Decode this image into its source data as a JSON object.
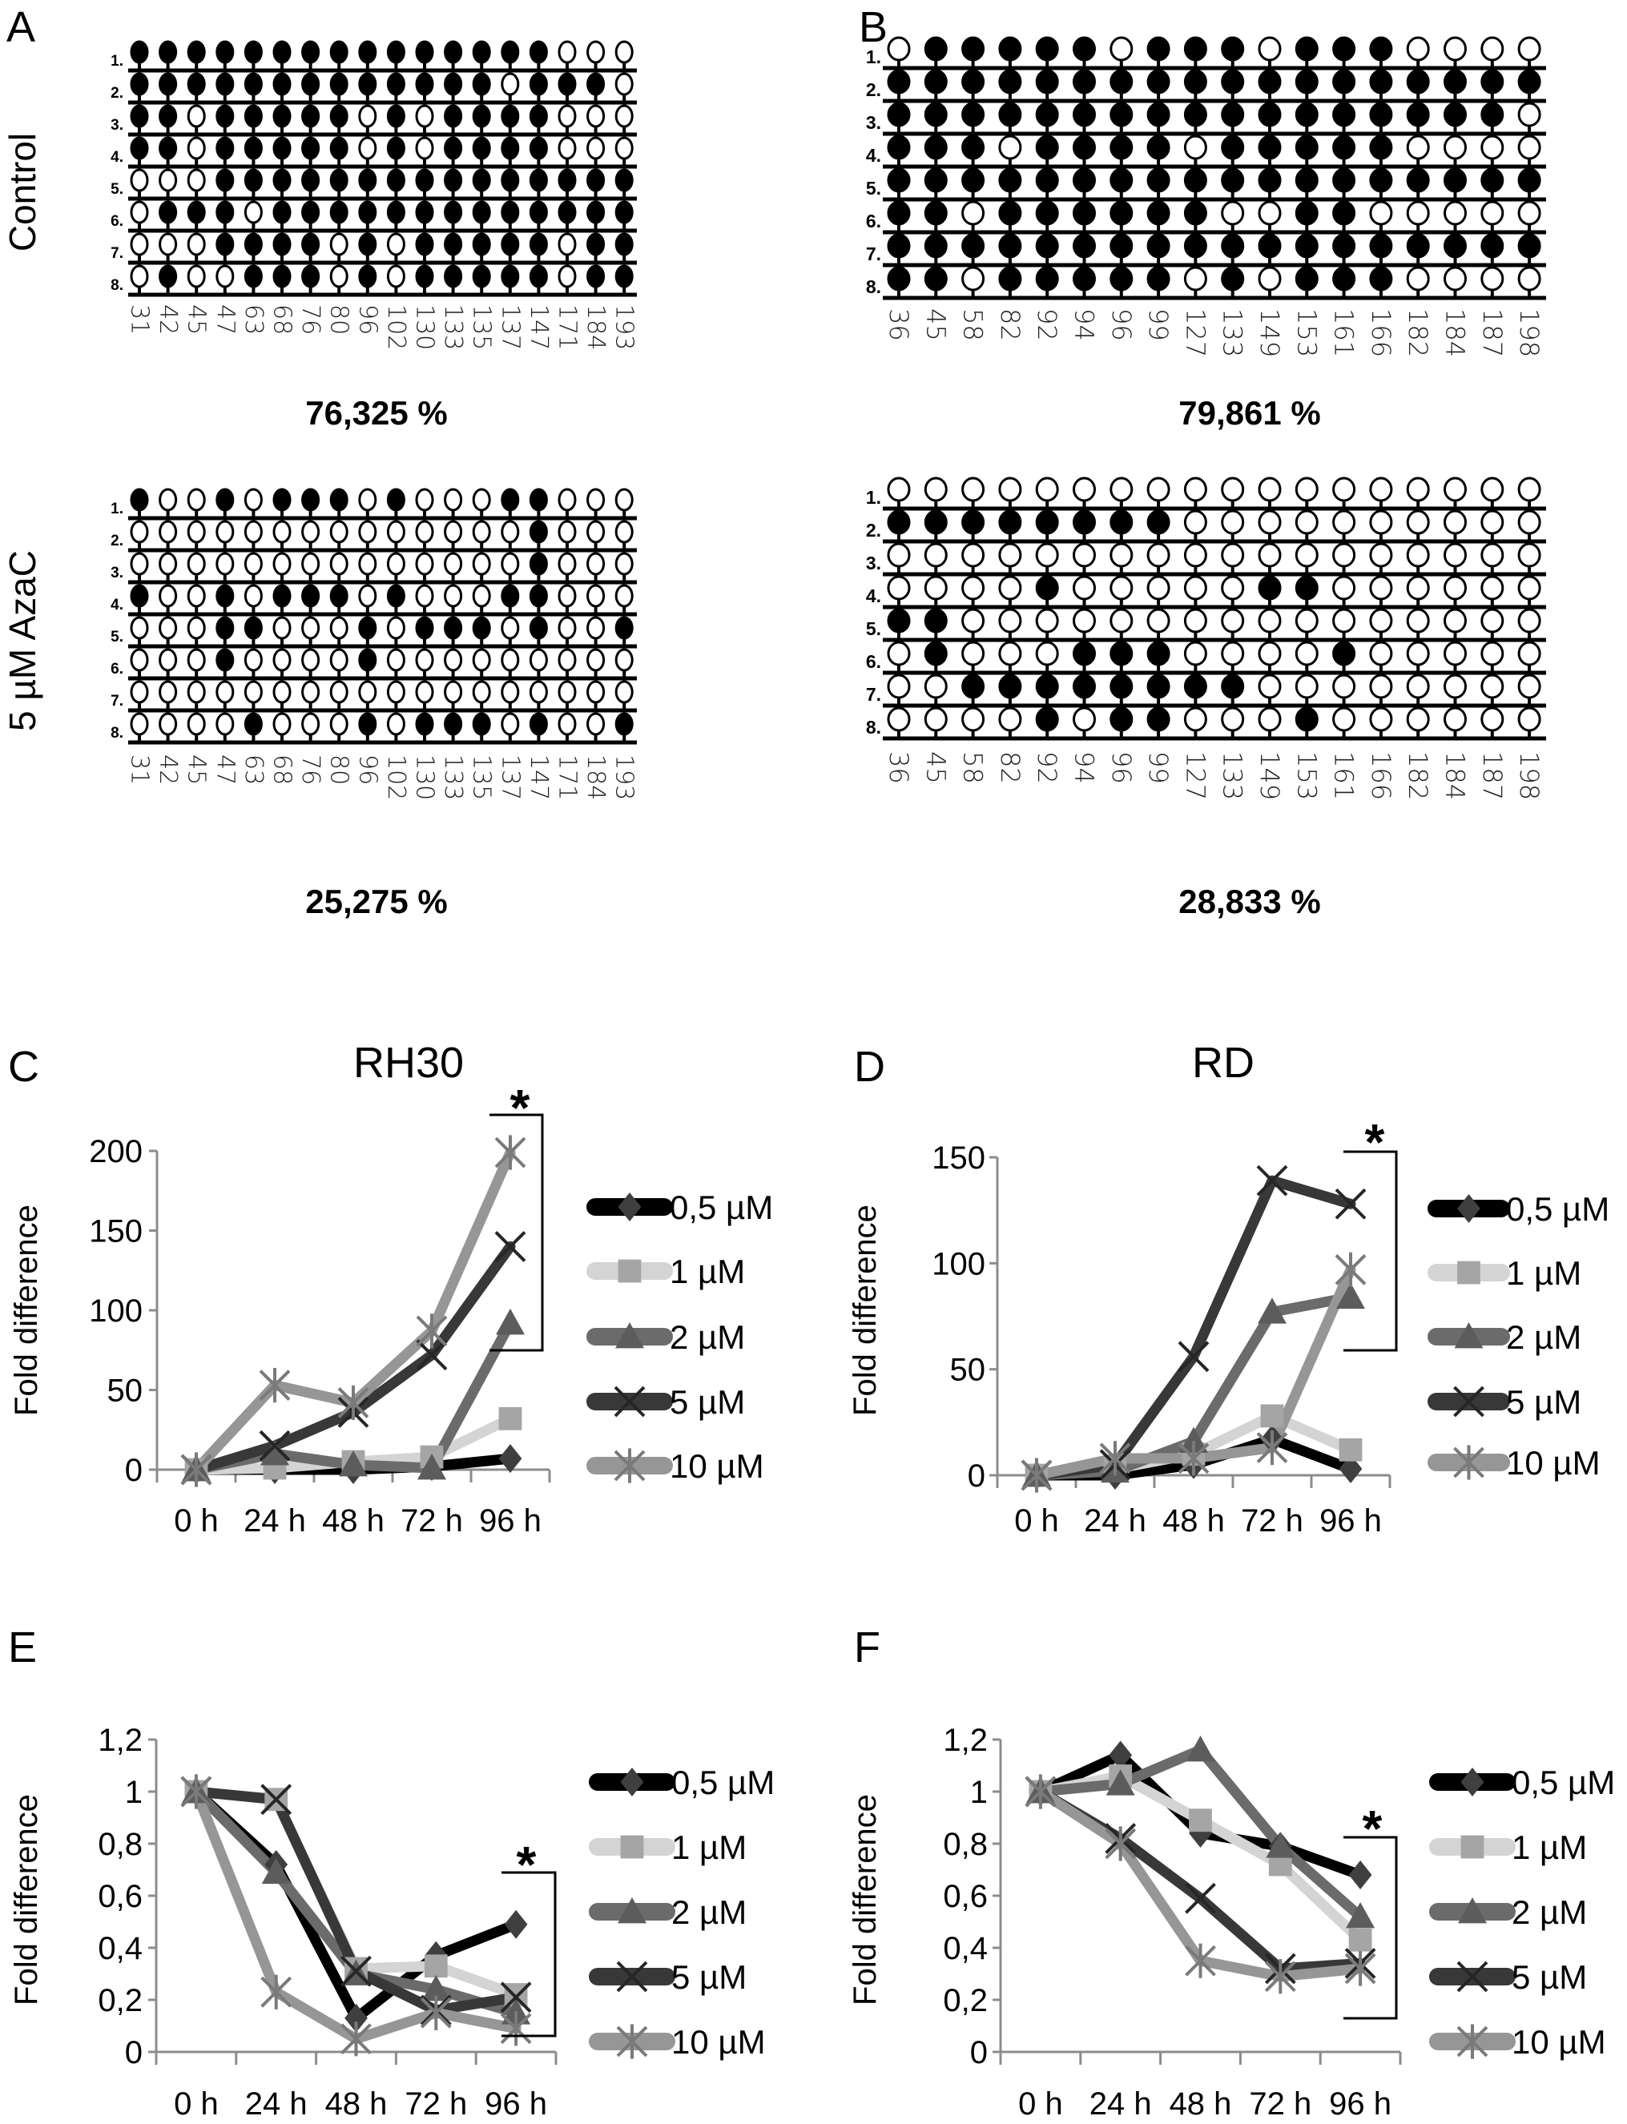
{
  "methylation": [
    {
      "panel_label": "A",
      "row_labels": [
        "1.",
        "2.",
        "3.",
        "4.",
        "5.",
        "6.",
        "7.",
        "8."
      ],
      "sites": [
        "31",
        "42",
        "45",
        "47",
        "63",
        "68",
        "76",
        "80",
        "96",
        "102",
        "130",
        "133",
        "135",
        "137",
        "147",
        "171",
        "184",
        "193"
      ],
      "groups": [
        {
          "condition_label": "Control",
          "percent": "76,325 %",
          "rows": [
            "111111111111111000",
            "111111111111101110",
            "110111110101111000",
            "110111110101111000",
            "000111111111111111",
            "011101111111111111",
            "000111101011111011",
            "010011101011111011"
          ]
        },
        {
          "condition_label": "5 µM AzaC",
          "percent": "25,275 %",
          "rows": [
            "100101110100011000",
            "000000000000001000",
            "000000000000001000",
            "100101110100011000",
            "000110001011101001",
            "000100001000000000",
            "000000000000000000",
            "000010001011101001"
          ]
        }
      ]
    },
    {
      "panel_label": "B",
      "row_labels": [
        "1.",
        "2.",
        "3.",
        "4.",
        "5.",
        "6.",
        "7.",
        "8."
      ],
      "sites": [
        "36",
        "45",
        "58",
        "82",
        "92",
        "94",
        "96",
        "99",
        "127",
        "133",
        "149",
        "153",
        "161",
        "166",
        "182",
        "184",
        "187",
        "198"
      ],
      "groups": [
        {
          "percent": "79,861 %",
          "rows": [
            "011111011101110000",
            "111111111111111111",
            "111111111111111110",
            "111011110111110000",
            "111111111111111111",
            "110111111001100000",
            "111111111111111111",
            "110111110101110000"
          ]
        },
        {
          "percent": "28,833 %",
          "rows": [
            "000000000000000000",
            "111111110000000000",
            "000000000000000000",
            "000010000011000000",
            "110000000000000000",
            "010001110000100000",
            "001111111100000000",
            "000010110001000000"
          ]
        }
      ]
    }
  ],
  "chart_data": [
    {
      "panel_label": "C",
      "type": "line",
      "title": "RH30",
      "xlabel": "",
      "ylabel": "Fold difference",
      "categories": [
        "0 h",
        "24 h",
        "48 h",
        "72 h",
        "96 h"
      ],
      "ylim": [
        0,
        200
      ],
      "ytick_values": [
        0,
        50,
        100,
        150,
        200
      ],
      "ytick_labels": [
        "0",
        "50",
        "100",
        "150",
        "200"
      ],
      "grid": false,
      "legend": "right",
      "significance_mark": "*",
      "series": [
        {
          "name": "0,5 µM",
          "marker": "diamond",
          "line_color": "#000000",
          "marker_color": "#3f3f3f",
          "values": [
            0,
            0,
            0,
            2,
            7
          ]
        },
        {
          "name": "1 µM",
          "marker": "square",
          "line_color": "#d4d4d4",
          "marker_color": "#a5a5a5",
          "values": [
            0,
            1,
            5,
            8,
            32
          ]
        },
        {
          "name": "2 µM",
          "marker": "triangle",
          "line_color": "#6b6b6b",
          "marker_color": "#5c5c5c",
          "values": [
            0,
            10,
            3,
            1,
            92
          ]
        },
        {
          "name": "5 µM",
          "marker": "x",
          "line_color": "#383838",
          "marker_color": "#262626",
          "values": [
            0,
            15,
            36,
            72,
            140
          ]
        },
        {
          "name": "10 µM",
          "marker": "asterisk",
          "line_color": "#969696",
          "marker_color": "#7a7a7a",
          "values": [
            0,
            53,
            42,
            87,
            199
          ]
        }
      ]
    },
    {
      "panel_label": "D",
      "type": "line",
      "title": "RD",
      "xlabel": "",
      "ylabel": "Fold difference",
      "categories": [
        "0 h",
        "24 h",
        "48 h",
        "72 h",
        "96 h"
      ],
      "ylim": [
        0,
        150
      ],
      "ytick_values": [
        0,
        50,
        100,
        150
      ],
      "ytick_labels": [
        "0",
        "50",
        "100",
        "150"
      ],
      "grid": false,
      "legend": "right",
      "significance_mark": "*",
      "series": [
        {
          "name": "0,5 µM",
          "marker": "diamond",
          "line_color": "#000000",
          "marker_color": "#3f3f3f",
          "values": [
            0,
            0,
            5,
            17,
            3
          ]
        },
        {
          "name": "1 µM",
          "marker": "square",
          "line_color": "#d4d4d4",
          "marker_color": "#a5a5a5",
          "values": [
            0,
            3,
            10,
            28,
            12
          ]
        },
        {
          "name": "2 µM",
          "marker": "triangle",
          "line_color": "#6b6b6b",
          "marker_color": "#5c5c5c",
          "values": [
            0,
            2,
            16,
            77,
            84
          ]
        },
        {
          "name": "5 µM",
          "marker": "x",
          "line_color": "#383838",
          "marker_color": "#262626",
          "values": [
            0,
            5,
            56,
            139,
            128
          ]
        },
        {
          "name": "10 µM",
          "marker": "asterisk",
          "line_color": "#969696",
          "marker_color": "#7a7a7a",
          "values": [
            0,
            8,
            8,
            13,
            97
          ]
        }
      ]
    },
    {
      "panel_label": "E",
      "type": "line",
      "title": "",
      "xlabel": "",
      "ylabel": "Fold difference",
      "categories": [
        "0 h",
        "24 h",
        "48 h",
        "72 h",
        "96 h"
      ],
      "ylim": [
        0,
        1.2
      ],
      "ytick_values": [
        0,
        0.2,
        0.4,
        0.6,
        0.8,
        1,
        1.2
      ],
      "ytick_labels": [
        "0",
        "0,2",
        "0,4",
        "0,6",
        "0,8",
        "1",
        "1,2"
      ],
      "grid": false,
      "legend": "right",
      "significance_mark": "*",
      "series": [
        {
          "name": "0,5 µM",
          "marker": "diamond",
          "line_color": "#000000",
          "marker_color": "#3f3f3f",
          "values": [
            1,
            0.72,
            0.13,
            0.37,
            0.49
          ]
        },
        {
          "name": "1 µM",
          "marker": "square",
          "line_color": "#d4d4d4",
          "marker_color": "#a5a5a5",
          "values": [
            1,
            0.97,
            0.32,
            0.33,
            0.22
          ]
        },
        {
          "name": "2 µM",
          "marker": "triangle",
          "line_color": "#6b6b6b",
          "marker_color": "#5c5c5c",
          "values": [
            1,
            0.69,
            0.3,
            0.24,
            0.15
          ]
        },
        {
          "name": "5 µM",
          "marker": "x",
          "line_color": "#383838",
          "marker_color": "#262626",
          "values": [
            1,
            0.97,
            0.31,
            0.16,
            0.21
          ]
        },
        {
          "name": "10 µM",
          "marker": "asterisk",
          "line_color": "#969696",
          "marker_color": "#7a7a7a",
          "values": [
            1,
            0.23,
            0.05,
            0.15,
            0.09
          ]
        }
      ]
    },
    {
      "panel_label": "F",
      "type": "line",
      "title": "",
      "xlabel": "",
      "ylabel": "Fold difference",
      "categories": [
        "0 h",
        "24 h",
        "48 h",
        "72 h",
        "96 h"
      ],
      "ylim": [
        0,
        1.2
      ],
      "ytick_values": [
        0,
        0.2,
        0.4,
        0.6,
        0.8,
        1,
        1.2
      ],
      "ytick_labels": [
        "0",
        "0,2",
        "0,4",
        "0,6",
        "0,8",
        "1",
        "1,2"
      ],
      "grid": false,
      "legend": "right",
      "significance_mark": "*",
      "series": [
        {
          "name": "0,5 µM",
          "marker": "diamond",
          "line_color": "#000000",
          "marker_color": "#3f3f3f",
          "values": [
            1,
            1.14,
            0.84,
            0.79,
            0.68
          ]
        },
        {
          "name": "1 µM",
          "marker": "square",
          "line_color": "#d4d4d4",
          "marker_color": "#a5a5a5",
          "values": [
            1,
            1.06,
            0.89,
            0.72,
            0.43
          ]
        },
        {
          "name": "2 µM",
          "marker": "triangle",
          "line_color": "#6b6b6b",
          "marker_color": "#5c5c5c",
          "values": [
            1,
            1.03,
            1.16,
            0.79,
            0.52
          ]
        },
        {
          "name": "5 µM",
          "marker": "x",
          "line_color": "#383838",
          "marker_color": "#262626",
          "values": [
            1,
            0.82,
            0.59,
            0.32,
            0.34
          ]
        },
        {
          "name": "10 µM",
          "marker": "asterisk",
          "line_color": "#969696",
          "marker_color": "#7a7a7a",
          "values": [
            1,
            0.8,
            0.35,
            0.29,
            0.32
          ]
        }
      ]
    }
  ]
}
